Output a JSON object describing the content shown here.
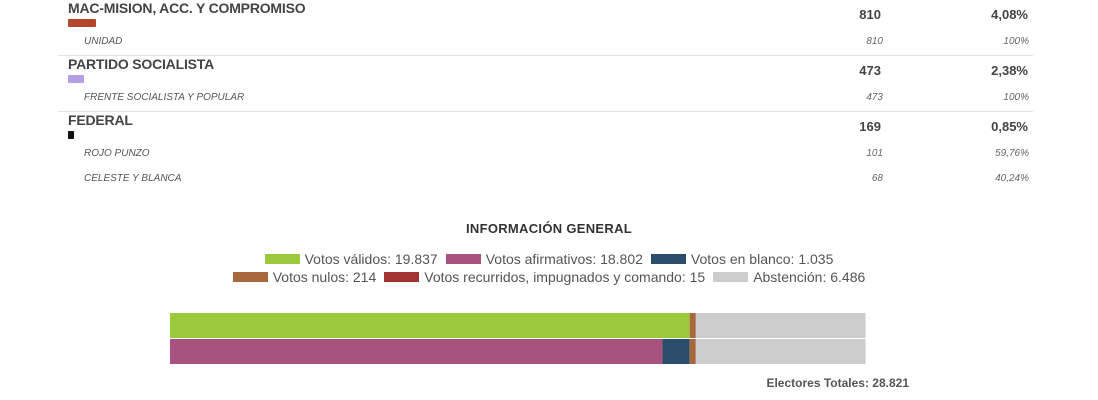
{
  "parties": [
    {
      "name": "MAC-MISION, ACC. Y COMPROMISO",
      "color": "#b5462e",
      "votes": "810",
      "pct": "4,08%",
      "subs": [
        {
          "name": "UNIDAD",
          "votes": "810",
          "pct": "100%"
        }
      ]
    },
    {
      "name": "PARTIDO SOCIALISTA",
      "color": "#b69ee6",
      "votes": "473",
      "pct": "2,38%",
      "subs": [
        {
          "name": "FRENTE SOCIALISTA Y POPULAR",
          "votes": "473",
          "pct": "100%"
        }
      ]
    },
    {
      "name": "FEDERAL",
      "color": "#111111",
      "votes": "169",
      "pct": "0,85%",
      "subs": [
        {
          "name": "ROJO PUNZO",
          "votes": "101",
          "pct": "59,76%"
        },
        {
          "name": "CELESTE Y BLANCA",
          "votes": "68",
          "pct": "40,24%"
        }
      ]
    }
  ],
  "general": {
    "title": "INFORMACIÓN GENERAL",
    "total_label": "Electores Totales: 28.821"
  },
  "chart_data": {
    "type": "bar",
    "orientation": "horizontal-stacked",
    "total": 28821,
    "legend": [
      {
        "label": "Votos válidos: 19.837",
        "color": "#9ac93c"
      },
      {
        "label": "Votos afirmativos: 18.802",
        "color": "#a8527f"
      },
      {
        "label": "Votos en blanco: 1.035",
        "color": "#2a4d6b"
      },
      {
        "label": "Votos nulos: 214",
        "color": "#a8683c"
      },
      {
        "label": "Votos recurridos, impugnados y comando: 15",
        "color": "#a33232"
      },
      {
        "label": "Abstención: 6.486",
        "color": "#cccccc"
      }
    ],
    "bar_top": [
      {
        "value": 19837,
        "color": "#9ac93c"
      },
      {
        "value": 214,
        "color": "#a8683c"
      },
      {
        "value": 15,
        "color": "#a33232"
      },
      {
        "value": 6486,
        "color": "#cccccc"
      }
    ],
    "bar_bottom": [
      {
        "value": 18802,
        "color": "#a8527f"
      },
      {
        "value": 1035,
        "color": "#2a4d6b"
      },
      {
        "value": 214,
        "color": "#a8683c"
      },
      {
        "value": 15,
        "color": "#a33232"
      },
      {
        "value": 6486,
        "color": "#cccccc"
      }
    ]
  }
}
